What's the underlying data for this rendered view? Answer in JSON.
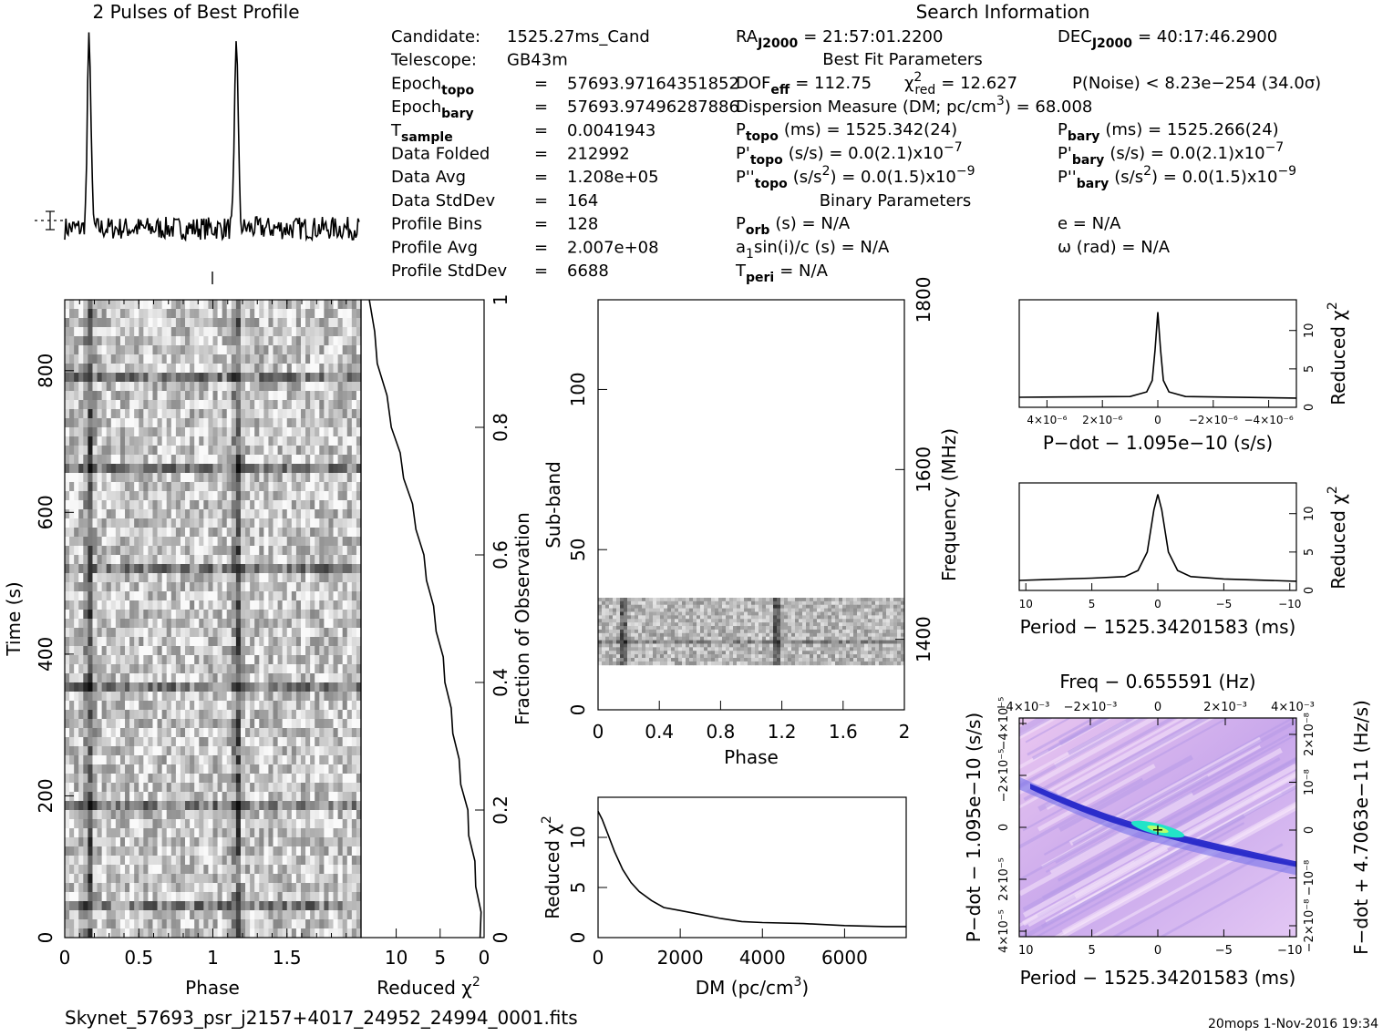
{
  "footer": {
    "filename": "Skynet_57693_psr_j2157+4017_24952_24994_0001.fits",
    "stamp": "20mops   1-Nov-2016 19:34"
  },
  "info": {
    "heading": "Search Information",
    "best_fit_heading": "Best Fit Parameters",
    "binary_heading": "Binary Parameters",
    "left": [
      {
        "label": "Candidate:",
        "sub": "",
        "eq": "",
        "value": "1525.27ms_Cand"
      },
      {
        "label": "Telescope:",
        "sub": "",
        "eq": "",
        "value": "GB43m"
      },
      {
        "label": "Epoch",
        "sub": "topo",
        "eq": "=",
        "value": "57693.97164351852"
      },
      {
        "label": "Epoch",
        "sub": "bary",
        "eq": "=",
        "value": "57693.97496287886"
      },
      {
        "label": "T",
        "sub": "sample",
        "eq": "=",
        "value": "0.0041943"
      },
      {
        "label": "Data Folded",
        "sub": "",
        "eq": "=",
        "value": "212992"
      },
      {
        "label": "Data Avg",
        "sub": "",
        "eq": "=",
        "value": "1.208e+05"
      },
      {
        "label": "Data StdDev",
        "sub": "",
        "eq": "=",
        "value": "164"
      },
      {
        "label": "Profile Bins",
        "sub": "",
        "eq": "=",
        "value": "128"
      },
      {
        "label": "Profile Avg",
        "sub": "",
        "eq": "=",
        "value": "2.007e+08"
      },
      {
        "label": "Profile StdDev",
        "sub": "",
        "eq": "=",
        "value": "6688"
      }
    ],
    "ra": {
      "label": "RA",
      "sub": "J2000",
      "value": "= 21:57:01.2200"
    },
    "dec": {
      "label": "DEC",
      "sub": "J2000",
      "value": "= 40:17:46.2900"
    },
    "dof": {
      "label": "DOF",
      "sub": "eff",
      "value": "= 112.75"
    },
    "chi2": {
      "label": "χ",
      "sup": "2",
      "sub": "red",
      "value": "= 12.627"
    },
    "pnoise": "P(Noise) < 8.23e−254   (34.0σ)",
    "dm_line": {
      "text": "Dispersion Measure (DM; pc/cm",
      "sup": "3",
      "value": ") = 68.008"
    },
    "ptopo": {
      "label": "P",
      "sub": "topo",
      "value": "(ms)  =   1525.342(24)"
    },
    "pbary": {
      "label": "P",
      "sub": "bary",
      "value": "(ms)  =   1525.266(24)"
    },
    "pdtopo": {
      "label": "P'",
      "sub": "topo",
      "value": "(s/s) = 0.0(2.1)x10",
      "sup": "−7"
    },
    "pdbary": {
      "label": "P'",
      "sub": "bary",
      "value": "(s/s) = 0.0(2.1)x10",
      "sup": "−7"
    },
    "pddtopo": {
      "label": "P''",
      "sub": "topo",
      "value": "(s/s",
      "sup1": "2",
      "value2": ") = 0.0(1.5)x10",
      "sup": "−9"
    },
    "pddbary": {
      "label": "P''",
      "sub": "bary",
      "value": "(s/s",
      "sup1": "2",
      "value2": ") = 0.0(1.5)x10",
      "sup": "−9"
    },
    "porb": {
      "label": "P",
      "sub": "orb",
      "value": "(s) = N/A"
    },
    "e_line": "e = N/A",
    "a1": {
      "label": "a",
      "sub": "1",
      "value": "sin(i)/c (s) = N/A"
    },
    "omega": "ω (rad) = N/A",
    "tperi": {
      "label": "T",
      "sub": "peri",
      "value": "= N/A"
    }
  },
  "colors": {
    "ink": "#000000",
    "map_low": "#f2d6f5",
    "map_mid": "#3a3de0",
    "map_high": "#17e6c8"
  },
  "chart_data": [
    {
      "id": "profile",
      "type": "line",
      "title": "2 Pulses of Best Profile",
      "xlabel": "",
      "ylabel": "",
      "x_range": [
        0,
        2
      ],
      "y_range": [
        -0.15,
        1.05
      ],
      "series": [
        {
          "pulse_phases": [
            0.166,
            1.166
          ],
          "peak": 1.0,
          "baseline": 0.0,
          "noise": 0.06
        }
      ]
    },
    {
      "id": "time-phase",
      "type": "heatmap",
      "xlabel": "Phase",
      "ylabel": "Time (s)",
      "xlim": [
        0,
        2
      ],
      "ylim": [
        0,
        900
      ],
      "xticks": [
        "0",
        "0.5",
        "1",
        "1.5"
      ],
      "yticks": [
        "0",
        "200",
        "400",
        "600",
        "800"
      ],
      "pulse_phases": [
        0.166,
        1.166
      ]
    },
    {
      "id": "chi2-time",
      "type": "line",
      "xlabel": "Reduced χ",
      "xlabel_sup": "2",
      "ylabel": "Fraction of Observation",
      "xlim": [
        14,
        0
      ],
      "ylim": [
        0,
        1
      ],
      "xticks": [
        "10",
        "5",
        "0"
      ],
      "yticks": [
        "0",
        "0.2",
        "0.4",
        "0.6",
        "0.8",
        "1"
      ],
      "x": [
        0.3,
        0.5,
        0.8,
        1.2,
        1.6,
        2.0,
        2.5,
        3.0,
        3.4,
        3.9,
        4.3,
        4.8,
        5.3,
        5.9,
        6.4,
        7.0,
        7.6,
        8.3,
        9.0,
        9.7,
        10.4,
        11.2,
        12.0,
        12.6,
        12.9
      ],
      "y": [
        0.0,
        0.04,
        0.08,
        0.12,
        0.16,
        0.2,
        0.24,
        0.28,
        0.32,
        0.36,
        0.4,
        0.44,
        0.48,
        0.52,
        0.56,
        0.6,
        0.64,
        0.68,
        0.72,
        0.76,
        0.8,
        0.85,
        0.9,
        0.95,
        1.0
      ]
    },
    {
      "id": "subband-phase",
      "type": "heatmap",
      "xlabel": "Phase",
      "ylabel": "Sub-band",
      "y2label": "Frequency (MHz)",
      "xlim": [
        0,
        2
      ],
      "ylim": [
        0,
        128
      ],
      "xticks": [
        "0",
        "0.4",
        "0.8",
        "1.2",
        "1.6",
        "2"
      ],
      "yticks": [
        "0",
        "50",
        "100"
      ],
      "y2ticks": [
        "1400",
        "1600",
        "1800"
      ],
      "band_subbands": [
        14,
        35
      ],
      "pulse_phases": [
        0.166,
        1.166
      ]
    },
    {
      "id": "chi2-dm",
      "type": "line",
      "xlabel": "DM (pc/cm",
      "xlabel_sup": "3",
      "xlabel_end": ")",
      "ylabel": "Reduced χ",
      "ylabel_sup": "2",
      "xlim": [
        0,
        7500
      ],
      "ylim": [
        0,
        14
      ],
      "xticks": [
        "0",
        "2000",
        "4000",
        "6000"
      ],
      "yticks": [
        "0",
        "5",
        "10"
      ],
      "x": [
        0,
        100,
        250,
        400,
        600,
        800,
        1000,
        1300,
        1600,
        2000,
        2500,
        3000,
        3500,
        4000,
        5000,
        6000,
        7000,
        7500
      ],
      "y": [
        12.6,
        11.8,
        10.2,
        8.6,
        6.8,
        5.5,
        4.6,
        3.7,
        3.0,
        2.7,
        2.3,
        1.9,
        1.6,
        1.5,
        1.4,
        1.2,
        1.1,
        1.1
      ]
    },
    {
      "id": "chi2-pdot",
      "type": "line",
      "xlabel": "P−dot − 1.095e−10 (s/s)",
      "ylabel": "Reduced χ",
      "ylabel_sup": "2",
      "xlim": [
        5e-06,
        -5e-06
      ],
      "ylim": [
        0,
        14
      ],
      "xticks": [
        "4×10⁻⁶",
        "2×10⁻⁶",
        "0",
        "−2×10⁻⁶",
        "−4×10⁻⁶"
      ],
      "yticks": [
        "0",
        "5",
        "10"
      ],
      "x": [
        5e-06,
        1e-06,
        4e-07,
        2e-07,
        1e-07,
        0,
        -1e-07,
        -2e-07,
        -4e-07,
        -1e-06,
        -5e-06
      ],
      "y": [
        1.3,
        1.4,
        2.0,
        3.5,
        7.5,
        12.4,
        7.5,
        3.5,
        2.0,
        1.4,
        1.2
      ]
    },
    {
      "id": "chi2-period",
      "type": "line",
      "xlabel": "Period − 1525.34201583 (ms)",
      "ylabel": "Reduced χ",
      "ylabel_sup": "2",
      "xlim": [
        10.5,
        -10.5
      ],
      "ylim": [
        0,
        14
      ],
      "xticks": [
        "10",
        "5",
        "0",
        "−5",
        "−10"
      ],
      "yticks": [
        "0",
        "5",
        "10"
      ],
      "x": [
        10.5,
        5,
        2.5,
        1.5,
        0.8,
        0.3,
        0,
        -0.3,
        -0.8,
        -1.5,
        -2.5,
        -5,
        -10.5
      ],
      "y": [
        1.3,
        1.6,
        1.8,
        2.6,
        5.0,
        10.5,
        12.5,
        10.5,
        5.0,
        2.6,
        1.8,
        1.5,
        1.2
      ]
    },
    {
      "id": "pdot-period-map",
      "type": "heatmap",
      "title": "Freq − 0.655591 (Hz)",
      "xlabel": "Period − 1525.34201583 (ms)",
      "ylabel": "P−dot − 1.095e−10 (s/s)",
      "y2label": "F−dot + 4.7063e−11 (Hz/s)",
      "xlim": [
        10.5,
        -10.5
      ],
      "xticks": [
        "10",
        "5",
        "0",
        "−5",
        "−10"
      ],
      "x2ticks": [
        "−4×10⁻³",
        "−2×10⁻³",
        "0",
        "2×10⁻³",
        "4×10⁻³"
      ],
      "yticks": [
        "4×10⁻⁵",
        "2×10⁻⁵",
        "0",
        "−2×10⁻⁵",
        "−4×10⁻⁵"
      ],
      "y2ticks": [
        "−2×10⁻⁸",
        "−10⁻⁸",
        "0",
        "10⁻⁸",
        "2×10⁻⁸"
      ],
      "peak": [
        0,
        0
      ]
    }
  ]
}
